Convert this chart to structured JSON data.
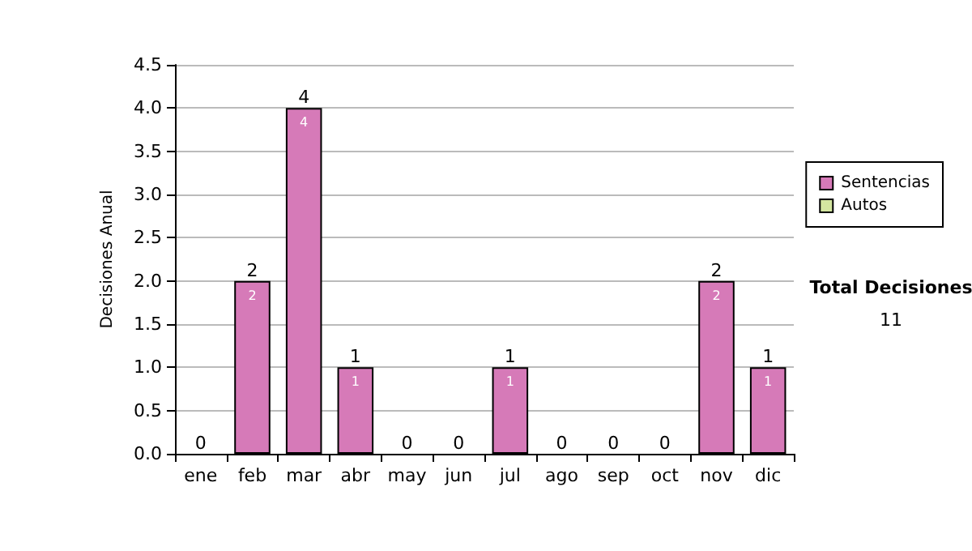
{
  "chart_data": {
    "type": "bar",
    "ylabel": "Decisiones Anual",
    "categories": [
      "ene",
      "feb",
      "mar",
      "abr",
      "may",
      "jun",
      "jul",
      "ago",
      "sep",
      "oct",
      "nov",
      "dic"
    ],
    "series": [
      {
        "name": "Sentencias",
        "color": "#d67ab8",
        "values": [
          0,
          2,
          4,
          1,
          0,
          0,
          1,
          0,
          0,
          0,
          2,
          1
        ],
        "value_labels": [
          null,
          "2",
          "4",
          "1",
          null,
          null,
          "1",
          null,
          null,
          null,
          "2",
          "1"
        ]
      },
      {
        "name": "Autos",
        "color": "#d4e6a0",
        "values": [
          0,
          0,
          0,
          0,
          0,
          0,
          0,
          0,
          0,
          0,
          0,
          0
        ]
      }
    ],
    "stacked": true,
    "totals": [
      "0",
      "2",
      "4",
      "1",
      "0",
      "0",
      "1",
      "0",
      "0",
      "0",
      "2",
      "1"
    ],
    "ylim": [
      0,
      4.5
    ],
    "yticks": [
      {
        "value": 0,
        "label": "0.0"
      },
      0.5,
      {
        "value": 1,
        "label": "1.0"
      },
      1.5,
      {
        "value": 2,
        "label": "2.0"
      },
      2.5,
      {
        "value": 3,
        "label": "3.0"
      },
      3.5,
      {
        "value": 4,
        "label": "4.0"
      },
      4.5
    ],
    "grid": "y",
    "legend": "right",
    "annotations": [
      "Total Decisiones",
      "11"
    ]
  }
}
